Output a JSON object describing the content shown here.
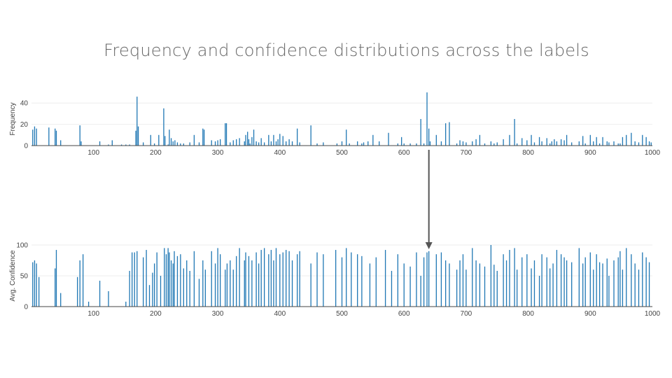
{
  "title": "Frequency and confidence distributions across the labels",
  "colors": {
    "bar": "#1f77b4",
    "grid": "#eeeeee",
    "axis": "#444444",
    "arrow": "#555555",
    "title": "#666666"
  },
  "chart_data": [
    {
      "name_id": "frequency",
      "type": "bar",
      "title": "",
      "xlabel": "",
      "ylabel": "Frequency",
      "xlim": [
        0,
        1000
      ],
      "ylim": [
        0,
        50
      ],
      "x_ticks": [
        100,
        200,
        300,
        400,
        500,
        600,
        700,
        800,
        900,
        1000
      ],
      "y_ticks": [
        0,
        20,
        40
      ],
      "grid": true,
      "x": [
        2,
        5,
        8,
        28,
        38,
        40,
        47,
        78,
        80,
        110,
        124,
        130,
        145,
        152,
        158,
        168,
        170,
        172,
        180,
        192,
        198,
        205,
        213,
        215,
        220,
        222,
        225,
        228,
        231,
        235,
        240,
        245,
        255,
        262,
        270,
        276,
        278,
        290,
        296,
        300,
        304,
        312,
        314,
        320,
        325,
        330,
        335,
        343,
        345,
        348,
        350,
        352,
        355,
        358,
        362,
        366,
        370,
        375,
        382,
        386,
        390,
        394,
        397,
        400,
        405,
        410,
        415,
        420,
        428,
        432,
        450,
        460,
        470,
        492,
        500,
        507,
        512,
        525,
        532,
        535,
        542,
        550,
        560,
        575,
        590,
        596,
        600,
        610,
        620,
        627,
        632,
        637,
        640,
        642,
        652,
        660,
        667,
        673,
        685,
        690,
        695,
        700,
        710,
        716,
        722,
        730,
        740,
        745,
        750,
        760,
        770,
        778,
        782,
        790,
        798,
        805,
        810,
        818,
        822,
        830,
        835,
        838,
        842,
        846,
        853,
        858,
        862,
        870,
        882,
        888,
        892,
        900,
        905,
        910,
        915,
        920,
        927,
        930,
        938,
        945,
        948,
        952,
        958,
        966,
        972,
        978,
        984,
        990,
        995,
        998
      ],
      "values": [
        15,
        18,
        16,
        17,
        16,
        14,
        5,
        19,
        4,
        4,
        1,
        5,
        1,
        1,
        1,
        14,
        46,
        18,
        3,
        10,
        2,
        10,
        35,
        9,
        1,
        15,
        7,
        4,
        5,
        3,
        2,
        2,
        3,
        10,
        3,
        16,
        15,
        5,
        4,
        5,
        6,
        21,
        21,
        3,
        5,
        6,
        7,
        4,
        10,
        13,
        6,
        2,
        8,
        15,
        4,
        3,
        7,
        3,
        10,
        4,
        10,
        4,
        6,
        11,
        9,
        4,
        6,
        4,
        16,
        3,
        19,
        2,
        3,
        2,
        4,
        15,
        2,
        4,
        2,
        3,
        4,
        10,
        4,
        12,
        2,
        8,
        2,
        2,
        2,
        25,
        2,
        50,
        16,
        4,
        10,
        4,
        21,
        22,
        2,
        5,
        4,
        3,
        4,
        6,
        10,
        2,
        4,
        2,
        3,
        6,
        10,
        25,
        2,
        7,
        5,
        10,
        3,
        8,
        4,
        7,
        2,
        4,
        6,
        4,
        6,
        5,
        10,
        3,
        4,
        9,
        2,
        10,
        4,
        8,
        2,
        8,
        4,
        3,
        4,
        2,
        2,
        8,
        10,
        12,
        4,
        3,
        10,
        8,
        4,
        3
      ]
    },
    {
      "name_id": "confidence",
      "type": "bar",
      "title": "",
      "xlabel": "",
      "ylabel": "Avg. Confidence",
      "xlim": [
        0,
        1000
      ],
      "ylim": [
        0,
        100
      ],
      "x_ticks": [
        100,
        200,
        300,
        400,
        500,
        600,
        700,
        800,
        900,
        1000
      ],
      "y_ticks": [
        0,
        50,
        100
      ],
      "grid": true,
      "x": [
        2,
        5,
        8,
        12,
        38,
        40,
        47,
        74,
        78,
        83,
        92,
        110,
        124,
        152,
        158,
        162,
        166,
        170,
        180,
        185,
        190,
        195,
        198,
        202,
        208,
        214,
        217,
        220,
        222,
        225,
        228,
        230,
        235,
        240,
        245,
        250,
        255,
        262,
        270,
        276,
        280,
        290,
        296,
        300,
        304,
        312,
        315,
        320,
        325,
        330,
        335,
        343,
        345,
        350,
        355,
        362,
        366,
        370,
        375,
        382,
        386,
        390,
        394,
        400,
        405,
        410,
        415,
        420,
        428,
        432,
        450,
        460,
        470,
        490,
        500,
        507,
        515,
        525,
        532,
        545,
        555,
        570,
        580,
        590,
        600,
        610,
        620,
        627,
        632,
        637,
        640,
        652,
        660,
        667,
        673,
        685,
        690,
        695,
        700,
        710,
        716,
        722,
        730,
        740,
        745,
        750,
        760,
        765,
        770,
        778,
        782,
        790,
        798,
        805,
        810,
        818,
        822,
        830,
        835,
        840,
        846,
        853,
        858,
        862,
        870,
        882,
        888,
        892,
        900,
        905,
        910,
        915,
        920,
        927,
        930,
        938,
        945,
        948,
        952,
        958,
        966,
        972,
        978,
        984,
        990,
        995
      ],
      "values": [
        72,
        75,
        70,
        48,
        62,
        92,
        22,
        48,
        75,
        85,
        8,
        42,
        25,
        8,
        58,
        88,
        88,
        90,
        80,
        92,
        35,
        55,
        70,
        88,
        50,
        95,
        85,
        95,
        88,
        75,
        70,
        90,
        82,
        85,
        62,
        75,
        58,
        90,
        45,
        75,
        60,
        90,
        70,
        95,
        85,
        60,
        70,
        75,
        60,
        82,
        95,
        75,
        88,
        82,
        75,
        88,
        70,
        92,
        95,
        85,
        92,
        75,
        95,
        85,
        88,
        92,
        90,
        75,
        85,
        90,
        70,
        88,
        85,
        92,
        80,
        95,
        88,
        85,
        82,
        70,
        80,
        92,
        58,
        85,
        70,
        65,
        88,
        50,
        80,
        88,
        90,
        85,
        88,
        75,
        70,
        60,
        75,
        85,
        60,
        95,
        75,
        70,
        65,
        100,
        68,
        58,
        85,
        75,
        92,
        95,
        60,
        80,
        85,
        62,
        75,
        50,
        85,
        80,
        62,
        70,
        92,
        85,
        80,
        75,
        72,
        95,
        70,
        80,
        88,
        60,
        85,
        72,
        70,
        78,
        50,
        75,
        80,
        90,
        60,
        95,
        85,
        70,
        60,
        88,
        80,
        72
      ]
    }
  ],
  "arrow": {
    "from_x": 640,
    "to_x": 640
  }
}
